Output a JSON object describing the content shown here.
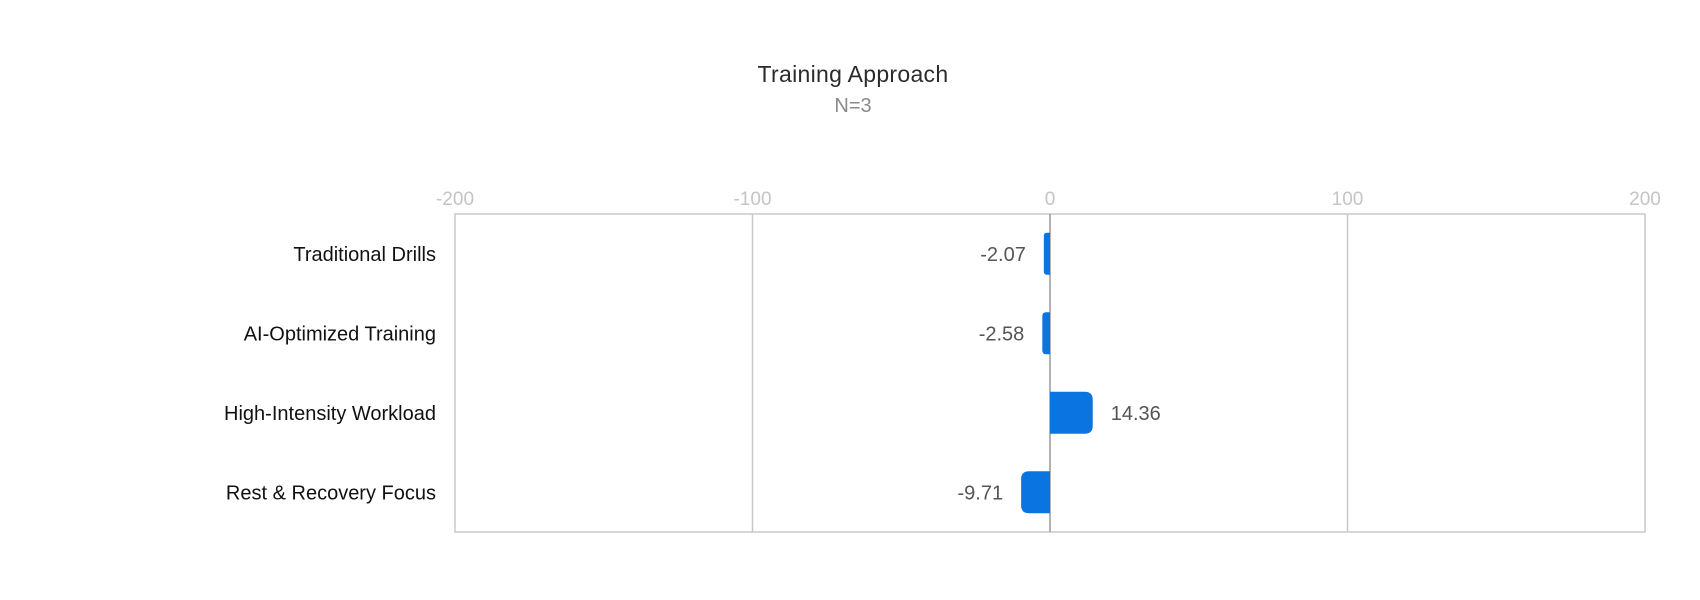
{
  "chart_data": {
    "type": "bar",
    "orientation": "horizontal",
    "title": "Training Approach",
    "subtitle": "N=3",
    "categories": [
      "Traditional Drills",
      "AI-Optimized Training",
      "High-Intensity Workload",
      "Rest & Recovery Focus"
    ],
    "values": [
      -2.07,
      -2.58,
      14.36,
      -9.71
    ],
    "value_labels": [
      "-2.07",
      "-2.58",
      "14.36",
      "-9.71"
    ],
    "xlim": [
      -200,
      200
    ],
    "x_ticks": [
      -200,
      -100,
      0,
      100,
      200
    ],
    "x_tick_labels": [
      "-200",
      "-100",
      "0",
      "100",
      "200"
    ],
    "x_axis_position": "top",
    "grid": true,
    "bar_color": "#0a74e0",
    "grid_color": "#c8c8c8"
  }
}
